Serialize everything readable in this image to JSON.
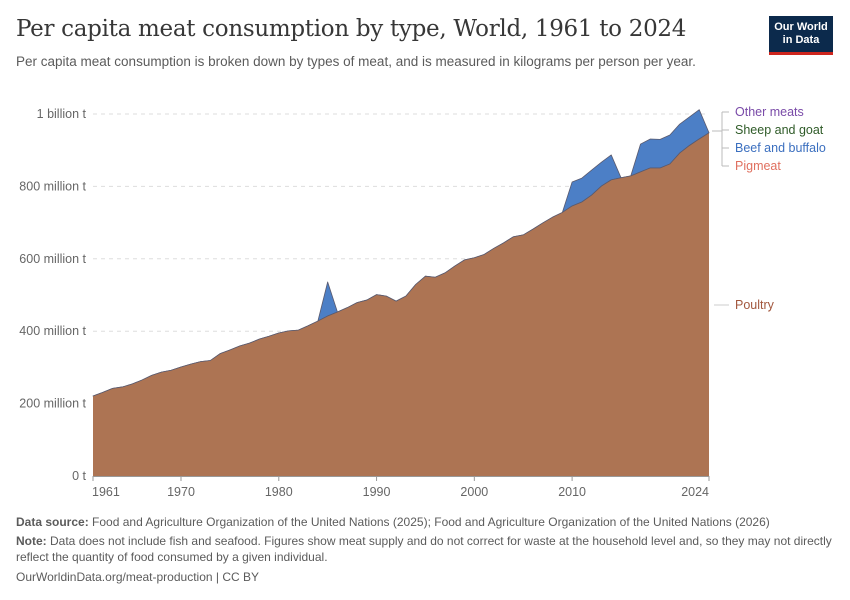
{
  "header": {
    "title": "Per capita meat consumption by type, World, 1961 to 2024",
    "subtitle": "Per capita meat consumption is broken down by types of meat, and is measured in kilograms per person per year.",
    "logo_line1": "Our World",
    "logo_line2": "in Data"
  },
  "colors": {
    "poultry": "#ad7453",
    "poultry_label": "#a2573d",
    "beef": "#4c7fc6",
    "beef_label": "#3b6fbf",
    "pigmeat_label": "#e0705f",
    "sheep_label": "#2f5b28",
    "other_label": "#7a4ba8",
    "grid": "#dddddd",
    "outline": "#5a5a6e"
  },
  "chart_data": {
    "type": "area",
    "stacked": true,
    "title": "Per capita meat consumption by type, World, 1961 to 2024",
    "xlabel": "",
    "ylabel": "",
    "unit": "million t",
    "xlim": [
      1961,
      2024
    ],
    "ylim": [
      0,
      1000
    ],
    "x_ticks": [
      "1961",
      "1970",
      "1980",
      "1990",
      "2000",
      "2010",
      "2024"
    ],
    "x_tick_values": [
      1961,
      1970,
      1980,
      1990,
      2000,
      2010,
      2024
    ],
    "y_ticks": [
      "0 t",
      "200 million t",
      "400 million t",
      "600 million t",
      "800 million t",
      "1 billion t"
    ],
    "y_tick_values": [
      0,
      200,
      400,
      600,
      800,
      1000
    ],
    "grid": "horizontal-dashed",
    "legend_placement": "right",
    "legend": [
      "Other meats",
      "Sheep and goat",
      "Beef and buffalo",
      "Pigmeat",
      "Poultry"
    ],
    "x": [
      1961,
      1962,
      1963,
      1964,
      1965,
      1966,
      1967,
      1968,
      1969,
      1970,
      1971,
      1972,
      1973,
      1974,
      1975,
      1976,
      1977,
      1978,
      1979,
      1980,
      1981,
      1982,
      1983,
      1984,
      1985,
      1986,
      1987,
      1988,
      1989,
      1990,
      1991,
      1992,
      1993,
      1994,
      1995,
      1996,
      1997,
      1998,
      1999,
      2000,
      2001,
      2002,
      2003,
      2004,
      2005,
      2006,
      2007,
      2008,
      2009,
      2010,
      2011,
      2012,
      2013,
      2014,
      2015,
      2016,
      2017,
      2018,
      2019,
      2020,
      2021,
      2022,
      2023,
      2024
    ],
    "series": [
      {
        "name": "Poultry",
        "values": [
          221,
          231,
          242,
          246,
          254,
          265,
          278,
          287,
          292,
          301,
          309,
          316,
          319,
          338,
          348,
          359,
          367,
          378,
          386,
          395,
          401,
          403,
          415,
          428,
          442,
          453,
          465,
          479,
          486,
          501,
          497,
          483,
          497,
          529,
          552,
          549,
          561,
          580,
          597,
          603,
          612,
          629,
          644,
          661,
          666,
          682,
          699,
          715,
          728,
          746,
          757,
          776,
          801,
          818,
          824,
          829,
          840,
          851,
          851,
          862,
          892,
          913,
          931,
          948
        ]
      },
      {
        "name": "Beef and buffalo",
        "values": [
          0,
          0,
          0,
          0,
          0,
          0,
          0,
          0,
          0,
          0,
          0,
          0,
          0,
          0,
          0,
          0,
          0,
          0,
          0,
          0,
          0,
          0,
          0,
          0,
          94,
          0,
          0,
          0,
          0,
          0,
          0,
          0,
          0,
          0,
          0,
          0,
          0,
          0,
          0,
          0,
          0,
          0,
          0,
          0,
          0,
          0,
          0,
          0,
          0,
          66,
          66,
          69,
          66,
          69,
          0,
          0,
          77,
          80,
          79,
          80,
          80,
          79,
          81,
          0
        ]
      },
      {
        "name": "Pigmeat",
        "values": []
      },
      {
        "name": "Sheep and goat",
        "values": []
      },
      {
        "name": "Other meats",
        "values": []
      }
    ]
  },
  "footer": {
    "source_label": "Data source:",
    "source_text": " Food and Agriculture Organization of the United Nations (2025); Food and Agriculture Organization of the United Nations (2026)",
    "note_label": "Note:",
    "note_text": " Data does not include fish and seafood. Figures show meat supply and do not correct for waste at the household level and, so they may not directly reflect the quantity of food consumed by a given individual.",
    "url": "OurWorldinData.org/meat-production | CC BY"
  }
}
